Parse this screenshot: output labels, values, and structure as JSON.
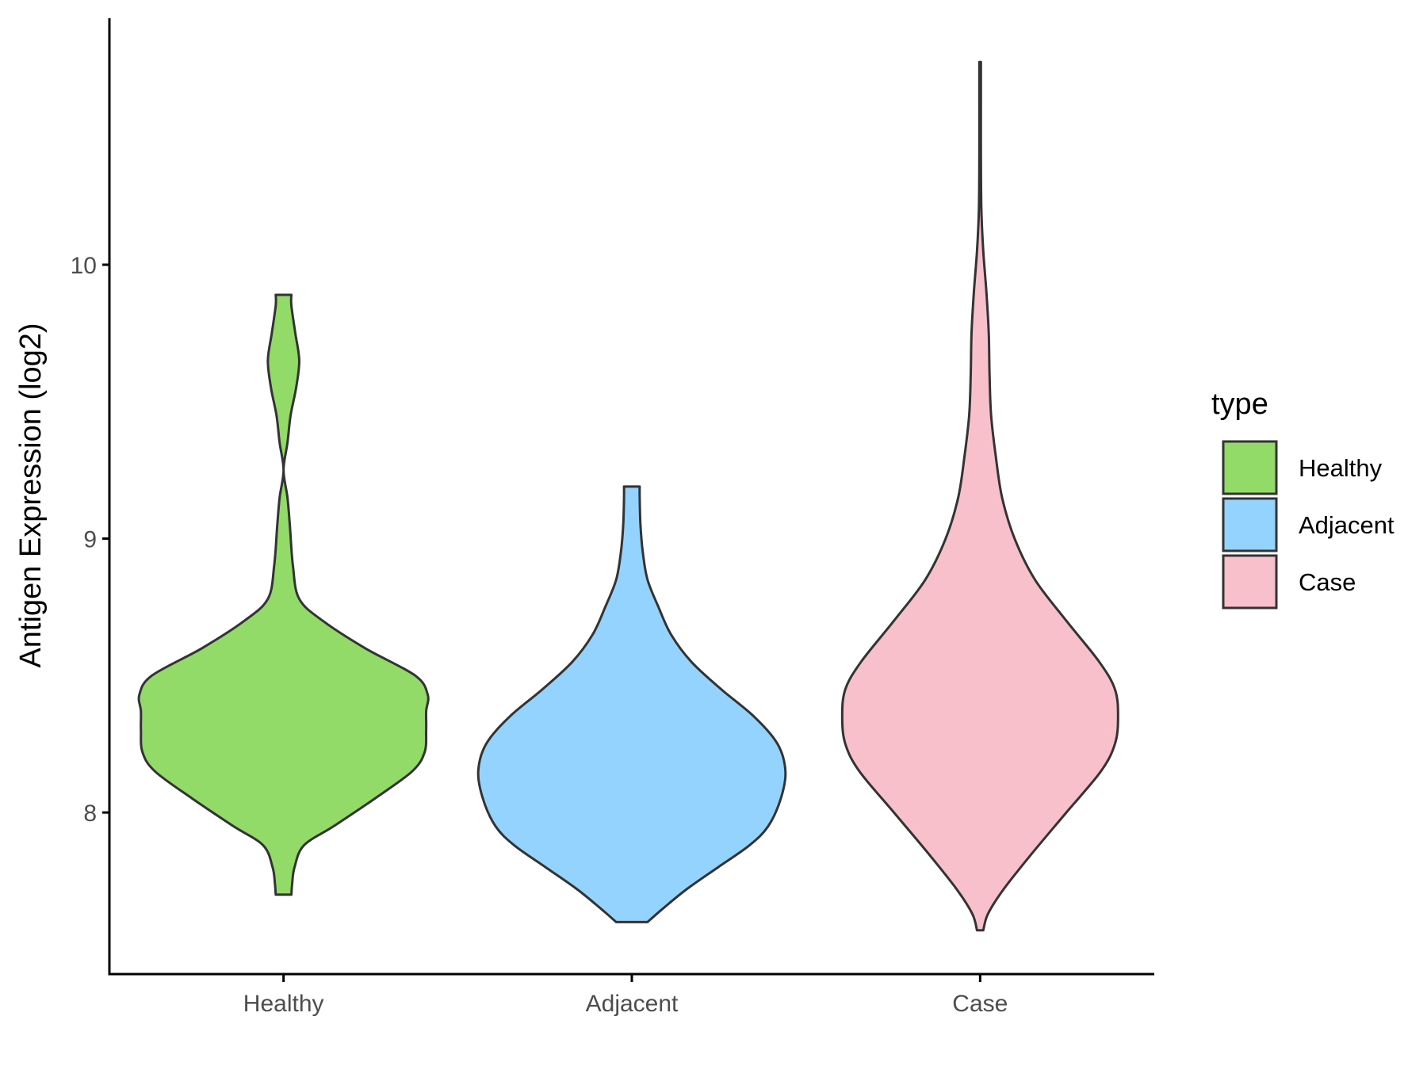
{
  "chart_data": {
    "type": "violin",
    "ylabel": "Antigen Expression (log2)",
    "xlabel": "",
    "categories": [
      "Healthy",
      "Adjacent",
      "Case"
    ],
    "y_ticks": [
      "8",
      "9",
      "10"
    ],
    "ylim": [
      7.41,
      10.9
    ],
    "grid": false,
    "legend": {
      "title": "type",
      "placement": "right",
      "entries": [
        "Healthy",
        "Adjacent",
        "Case"
      ]
    },
    "colors": {
      "Healthy": "#93db69",
      "Adjacent": "#93d3fe",
      "Case": "#f7c0cb",
      "outline": "#333333"
    },
    "series": [
      {
        "name": "Healthy",
        "min": 7.7,
        "max": 9.89,
        "density": [
          [
            7.7,
            0.05
          ],
          [
            7.74,
            0.055
          ],
          [
            7.8,
            0.07
          ],
          [
            7.88,
            0.13
          ],
          [
            7.95,
            0.32
          ],
          [
            8.05,
            0.58
          ],
          [
            8.15,
            0.82
          ],
          [
            8.22,
            0.9
          ],
          [
            8.3,
            0.91
          ],
          [
            8.37,
            0.91
          ],
          [
            8.43,
            0.92
          ],
          [
            8.5,
            0.84
          ],
          [
            8.6,
            0.52
          ],
          [
            8.7,
            0.25
          ],
          [
            8.78,
            0.1
          ],
          [
            8.9,
            0.06
          ],
          [
            9.05,
            0.04
          ],
          [
            9.15,
            0.025
          ],
          [
            9.25,
            0.0
          ],
          [
            9.35,
            0.025
          ],
          [
            9.45,
            0.045
          ],
          [
            9.55,
            0.08
          ],
          [
            9.65,
            0.1
          ],
          [
            9.75,
            0.075
          ],
          [
            9.85,
            0.05
          ],
          [
            9.89,
            0.05
          ]
        ]
      },
      {
        "name": "Adjacent",
        "min": 7.6,
        "max": 9.19,
        "density": [
          [
            7.6,
            0.1
          ],
          [
            7.65,
            0.2
          ],
          [
            7.72,
            0.35
          ],
          [
            7.8,
            0.55
          ],
          [
            7.88,
            0.75
          ],
          [
            7.95,
            0.87
          ],
          [
            8.05,
            0.95
          ],
          [
            8.15,
            0.98
          ],
          [
            8.25,
            0.93
          ],
          [
            8.35,
            0.78
          ],
          [
            8.45,
            0.57
          ],
          [
            8.55,
            0.38
          ],
          [
            8.65,
            0.25
          ],
          [
            8.75,
            0.17
          ],
          [
            8.85,
            0.1
          ],
          [
            8.95,
            0.07
          ],
          [
            9.05,
            0.055
          ],
          [
            9.15,
            0.05
          ],
          [
            9.19,
            0.05
          ]
        ]
      },
      {
        "name": "Case",
        "min": 7.57,
        "max": 10.74,
        "density": [
          [
            7.57,
            0.02
          ],
          [
            7.63,
            0.05
          ],
          [
            7.72,
            0.15
          ],
          [
            7.85,
            0.33
          ],
          [
            8.0,
            0.55
          ],
          [
            8.15,
            0.77
          ],
          [
            8.25,
            0.86
          ],
          [
            8.35,
            0.88
          ],
          [
            8.45,
            0.86
          ],
          [
            8.55,
            0.76
          ],
          [
            8.7,
            0.55
          ],
          [
            8.85,
            0.35
          ],
          [
            9.0,
            0.22
          ],
          [
            9.15,
            0.14
          ],
          [
            9.3,
            0.1
          ],
          [
            9.45,
            0.07
          ],
          [
            9.6,
            0.06
          ],
          [
            9.75,
            0.055
          ],
          [
            9.9,
            0.04
          ],
          [
            10.05,
            0.02
          ],
          [
            10.2,
            0.008
          ],
          [
            10.4,
            0.005
          ],
          [
            10.6,
            0.005
          ],
          [
            10.74,
            0.005
          ]
        ]
      }
    ]
  }
}
